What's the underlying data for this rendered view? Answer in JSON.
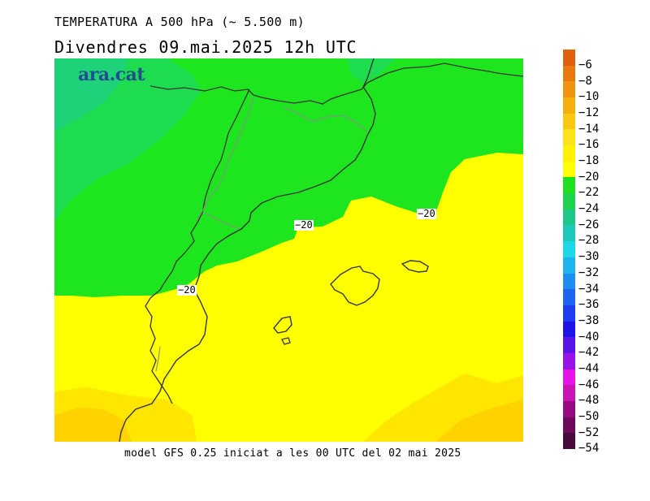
{
  "title": "TEMPERATURA A 500 hPa (~ 5.500 m)",
  "subtitle": "Divendres  09.mai.2025 12h UTC",
  "footer": "model GFS 0.25 iniciat a les 00 UTC del 02 mai 2025",
  "logo_text": "ara.cat",
  "contour_labels": [
    "-20",
    "-20",
    "-20"
  ],
  "legend": {
    "labels": [
      "-6",
      "-8",
      "-10",
      "-12",
      "-14",
      "-16",
      "-18",
      "-20",
      "-22",
      "-24",
      "-26",
      "-28",
      "-30",
      "-32",
      "-34",
      "-36",
      "-38",
      "-40",
      "-42",
      "-44",
      "-46",
      "-48",
      "-50",
      "-52",
      "-54"
    ],
    "colors": [
      "#e06010",
      "#e67a10",
      "#ef9410",
      "#f5ae10",
      "#fac810",
      "#fde21a",
      "#fff200",
      "#ffff00",
      "#1ee01e",
      "#1ed24e",
      "#1ec888",
      "#1ec8b8",
      "#1ed8e8",
      "#1eb4f0",
      "#1e8cf0",
      "#1e64f0",
      "#1e3cf0",
      "#1e14e8",
      "#5a14e8",
      "#9614e8",
      "#e614e8",
      "#c814b4",
      "#960a82",
      "#6e0a5a",
      "#460a3c"
    ]
  },
  "map": {
    "colors": {
      "yellow_light": "#ffff00",
      "yellow_mid": "#ffe600",
      "yellow_dark": "#ffd200",
      "green": "#1ee61e",
      "green_dark": "#1edc50",
      "green_teal": "#1ed27a"
    }
  }
}
